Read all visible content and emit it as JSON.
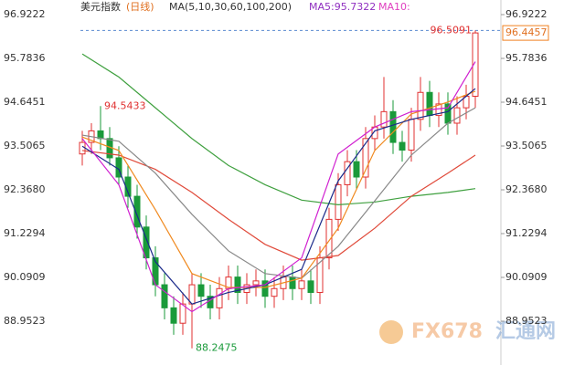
{
  "chart_data": {
    "type": "candlestick",
    "header": {
      "name": "美元指数",
      "period": "(日线)",
      "ma_setting": "MA(5,10,30,60,100,200)",
      "ma5_label": "MA5:95.7322",
      "ma10_label": "MA10:"
    },
    "watermark": [
      "FX678",
      "汇通网"
    ],
    "ylim": [
      87.814,
      97.302
    ],
    "yticks": [
      96.9222,
      95.7836,
      94.6451,
      93.5065,
      {
        "value": 92.368,
        "label": "92.3680"
      },
      91.2294,
      90.0909,
      88.9523
    ],
    "up_color": "#e03030",
    "down_color": "#1a9a3a",
    "candles": {
      "open": [
        93.3,
        93.6,
        93.9,
        93.7,
        93.2,
        92.7,
        92.2,
        91.4,
        90.6,
        89.9,
        89.3,
        88.9,
        89.4,
        89.9,
        89.6,
        89.3,
        89.8,
        90.1,
        89.7,
        89.9,
        90.0,
        89.6,
        89.8,
        90.1,
        89.8,
        90.0,
        89.7,
        90.6,
        91.6,
        92.5,
        93.1,
        92.7,
        93.7,
        94.0,
        94.4,
        93.6,
        93.4,
        94.2,
        94.9,
        94.3,
        94.6,
        94.1,
        94.5,
        94.8
      ],
      "high": [
        93.9,
        94.1,
        94.5433,
        94.0,
        93.5,
        93.0,
        92.5,
        91.7,
        90.9,
        90.2,
        89.6,
        89.7,
        90.2,
        90.2,
        89.9,
        90.1,
        90.4,
        90.4,
        90.2,
        90.3,
        90.3,
        90.1,
        90.4,
        90.4,
        90.3,
        90.3,
        90.9,
        91.9,
        92.8,
        93.4,
        93.4,
        94.0,
        94.3,
        95.3,
        94.7,
        93.9,
        94.5,
        95.3,
        95.2,
        94.9,
        94.9,
        94.8,
        95.1,
        96.5091
      ],
      "low": [
        93.0,
        93.3,
        93.4,
        93.0,
        92.5,
        91.9,
        91.1,
        90.3,
        89.6,
        89.0,
        88.6,
        88.6,
        88.2475,
        89.3,
        89.0,
        89.0,
        89.5,
        89.4,
        89.4,
        89.6,
        89.3,
        89.3,
        89.5,
        89.5,
        89.5,
        89.4,
        89.4,
        90.3,
        91.3,
        92.2,
        92.4,
        92.4,
        93.4,
        93.7,
        93.3,
        93.1,
        93.1,
        93.9,
        94.0,
        94.0,
        93.8,
        93.8,
        94.2,
        94.5
      ],
      "close": [
        93.6,
        93.9,
        93.7,
        93.2,
        92.7,
        92.2,
        91.4,
        90.6,
        89.9,
        89.3,
        88.9,
        89.4,
        89.9,
        89.6,
        89.3,
        89.8,
        90.1,
        89.7,
        89.9,
        90.0,
        89.6,
        89.8,
        90.1,
        89.8,
        90.0,
        89.7,
        90.6,
        91.6,
        92.5,
        93.1,
        92.7,
        93.7,
        94.0,
        94.4,
        93.6,
        93.4,
        94.2,
        94.9,
        94.3,
        94.6,
        94.1,
        94.5,
        94.8,
        96.4457
      ]
    },
    "ma_index": [
      0,
      4,
      8,
      12,
      16,
      20,
      24,
      28,
      32,
      36,
      40,
      43
    ],
    "ma_series": [
      {
        "color": "#3fa03f",
        "values": [
          95.9,
          95.3,
          94.5,
          93.7,
          93.0,
          92.5,
          92.1,
          91.98,
          92.05,
          92.2,
          92.3,
          92.4
        ]
      },
      {
        "color": "#e04a3a",
        "values": [
          93.39,
          93.27,
          92.9,
          92.3,
          91.6,
          90.95,
          90.54,
          90.66,
          91.37,
          92.2,
          92.8,
          93.27
        ]
      },
      {
        "color": "#888888",
        "values": [
          93.79,
          93.63,
          92.8,
          91.73,
          90.78,
          90.19,
          90.07,
          90.9,
          92.08,
          93.27,
          94.1,
          94.5
        ]
      },
      {
        "color": "#f08a20",
        "values": [
          93.74,
          93.39,
          91.85,
          90.19,
          89.83,
          89.83,
          90.07,
          91.37,
          93.39,
          94.34,
          94.65,
          94.93
        ]
      },
      {
        "color": "#1a2a8a",
        "values": [
          93.5,
          92.9,
          90.5,
          89.4,
          89.7,
          89.9,
          90.3,
          92.6,
          93.9,
          94.2,
          94.4,
          95.0
        ]
      },
      {
        "color": "#d020d0",
        "values": [
          93.7,
          92.5,
          89.9,
          89.2,
          89.8,
          89.9,
          90.6,
          93.3,
          94.0,
          94.4,
          94.5,
          95.7
        ]
      }
    ]
  }
}
